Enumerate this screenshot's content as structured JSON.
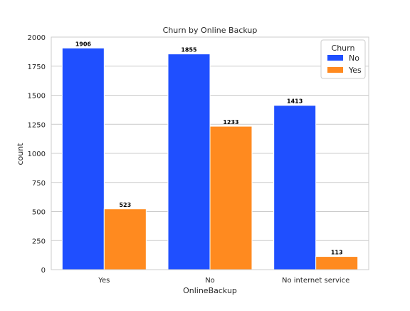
{
  "chart_data": {
    "type": "bar",
    "title": "Churn by Online Backup",
    "xlabel": "OnlineBackup",
    "ylabel": "count",
    "categories": [
      "Yes",
      "No",
      "No internet service"
    ],
    "series": [
      {
        "name": "No",
        "values": [
          1906,
          1855,
          1413
        ],
        "color": "#1f4fff"
      },
      {
        "name": "Yes",
        "values": [
          523,
          1233,
          113
        ],
        "color": "#ff8a1f"
      }
    ],
    "ylim": [
      0,
      2000
    ],
    "yticks": [
      0,
      250,
      500,
      750,
      1000,
      1250,
      1500,
      1750,
      2000
    ],
    "grid": true,
    "legend": {
      "title": "Churn",
      "placement": "top-right"
    }
  }
}
